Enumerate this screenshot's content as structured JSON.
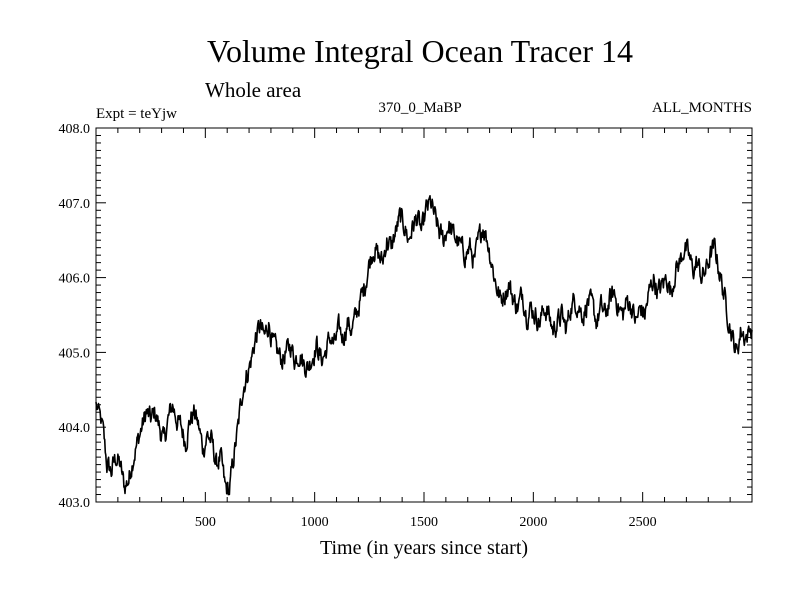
{
  "chart_data": {
    "type": "line",
    "title": "Volume Integral Ocean Tracer 14",
    "subtitle": "Whole area",
    "expt_label": "Expt = teYjw",
    "run_label": "370_0_MaBP",
    "months_label": "ALL_MONTHS",
    "xlabel": "Time (in years since start)",
    "ylabel": "",
    "xlim": [
      0,
      3000
    ],
    "ylim": [
      403.0,
      408.0
    ],
    "x_ticks": [
      500,
      1000,
      1500,
      2000,
      2500
    ],
    "x_tick_labels": [
      "500",
      "1000",
      "1500",
      "2000",
      "2500"
    ],
    "y_ticks": [
      403.0,
      404.0,
      405.0,
      406.0,
      407.0,
      408.0
    ],
    "y_tick_labels": [
      "403.0",
      "404.0",
      "405.0",
      "406.0",
      "407.0",
      "408.0"
    ],
    "series": [
      {
        "name": "Volume Integral Ocean Tracer 14",
        "x": [
          0,
          30,
          50,
          70,
          90,
          110,
          130,
          150,
          170,
          190,
          210,
          230,
          250,
          270,
          290,
          310,
          330,
          350,
          370,
          390,
          410,
          430,
          450,
          470,
          490,
          510,
          530,
          550,
          570,
          590,
          610,
          630,
          650,
          670,
          690,
          710,
          730,
          750,
          770,
          790,
          810,
          830,
          850,
          870,
          890,
          910,
          930,
          950,
          970,
          990,
          1010,
          1030,
          1050,
          1070,
          1090,
          1110,
          1130,
          1150,
          1170,
          1190,
          1210,
          1230,
          1250,
          1270,
          1290,
          1310,
          1330,
          1350,
          1370,
          1390,
          1410,
          1430,
          1450,
          1470,
          1490,
          1510,
          1530,
          1550,
          1570,
          1590,
          1610,
          1630,
          1650,
          1670,
          1690,
          1710,
          1730,
          1750,
          1770,
          1790,
          1810,
          1830,
          1850,
          1870,
          1890,
          1910,
          1930,
          1950,
          1970,
          1990,
          2010,
          2030,
          2050,
          2070,
          2090,
          2110,
          2130,
          2150,
          2170,
          2190,
          2210,
          2230,
          2250,
          2270,
          2290,
          2310,
          2330,
          2350,
          2370,
          2390,
          2410,
          2430,
          2450,
          2470,
          2490,
          2510,
          2530,
          2550,
          2570,
          2590,
          2610,
          2630,
          2650,
          2670,
          2690,
          2710,
          2730,
          2750,
          2770,
          2790,
          2810,
          2830,
          2850,
          2870,
          2890,
          2910,
          2930,
          2950,
          2970,
          3000
        ],
        "values": [
          404.3,
          404.0,
          403.5,
          403.4,
          403.6,
          403.5,
          403.2,
          403.3,
          403.6,
          403.8,
          404.0,
          404.2,
          404.1,
          404.2,
          404.0,
          403.8,
          404.1,
          404.3,
          404.1,
          404.0,
          403.8,
          404.1,
          404.2,
          404.0,
          403.7,
          403.9,
          403.8,
          403.5,
          403.6,
          403.2,
          403.15,
          403.6,
          404.0,
          404.5,
          404.7,
          404.9,
          405.2,
          405.35,
          405.2,
          405.4,
          405.1,
          405.0,
          404.9,
          405.0,
          405.1,
          404.9,
          405.0,
          404.85,
          404.8,
          404.95,
          405.1,
          404.9,
          405.0,
          405.2,
          405.1,
          405.3,
          405.2,
          405.4,
          405.3,
          405.5,
          405.7,
          405.9,
          406.2,
          406.4,
          406.3,
          406.2,
          406.5,
          406.4,
          406.6,
          406.8,
          406.7,
          406.5,
          406.7,
          406.8,
          406.6,
          406.9,
          407.0,
          406.8,
          406.6,
          406.5,
          406.7,
          406.6,
          406.5,
          406.4,
          406.3,
          406.4,
          406.2,
          406.5,
          406.7,
          406.5,
          406.2,
          405.9,
          405.7,
          405.8,
          405.9,
          405.7,
          405.6,
          405.8,
          405.5,
          405.6,
          405.5,
          405.4,
          405.6,
          405.5,
          405.3,
          405.4,
          405.5,
          405.3,
          405.6,
          405.7,
          405.6,
          405.5,
          405.7,
          405.6,
          405.4,
          405.6,
          405.5,
          405.7,
          405.8,
          405.6,
          405.5,
          405.7,
          405.6,
          405.4,
          405.6,
          405.5,
          405.8,
          406.0,
          405.8,
          405.9,
          406.0,
          405.8,
          406.1,
          406.2,
          406.4,
          406.3,
          406.1,
          406.2,
          406.0,
          406.1,
          406.3,
          406.4,
          406.1,
          405.8,
          405.5,
          405.2,
          405.0,
          405.3,
          405.2,
          405.3
        ]
      }
    ],
    "line_color": "#000000"
  }
}
